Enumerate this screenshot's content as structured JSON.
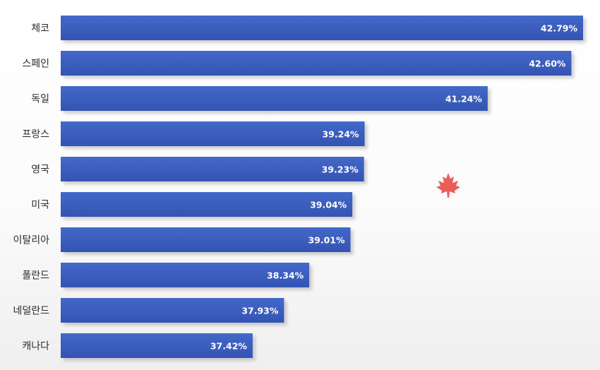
{
  "chart_data": {
    "type": "bar",
    "orientation": "horizontal",
    "categories": [
      "체코",
      "스페인",
      "독일",
      "프랑스",
      "영국",
      "미국",
      "이탈리아",
      "폴란드",
      "네덜란드",
      "캐나다"
    ],
    "values": [
      42.79,
      42.6,
      41.24,
      39.24,
      39.23,
      39.04,
      39.01,
      38.34,
      37.93,
      37.42
    ],
    "value_labels": [
      "42.79%",
      "42.60%",
      "41.24%",
      "39.24%",
      "39.23%",
      "39.04%",
      "39.01%",
      "38.34%",
      "37.93%",
      "37.42%"
    ],
    "title": "",
    "xlabel": "",
    "ylabel": "",
    "xlim": [
      34.3,
      42.79
    ],
    "grid": false,
    "legend": "none",
    "colors": {
      "bar": "#3b5fbf",
      "bar_shadow": "#c8c8c8",
      "label_text": "#ffffff",
      "category_text": "#2b2b2b"
    }
  },
  "decoration": {
    "icon": "maple-leaf-icon",
    "color": "#e8504a"
  }
}
